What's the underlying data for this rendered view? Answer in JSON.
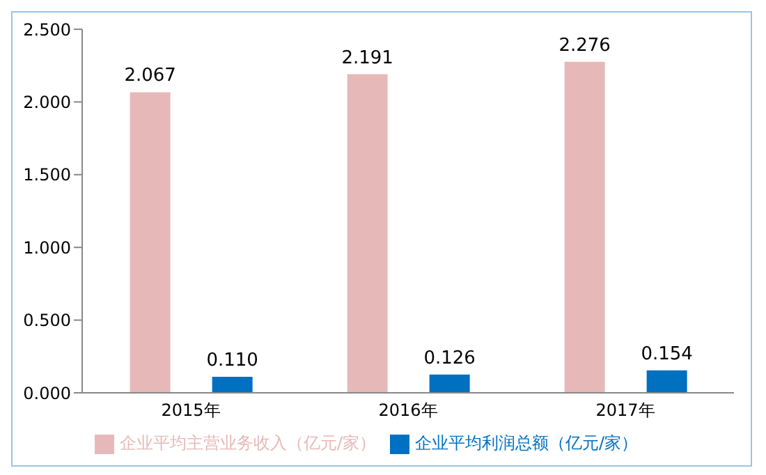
{
  "chart_data": {
    "type": "bar",
    "categories": [
      "2015年",
      "2016年",
      "2017年"
    ],
    "series": [
      {
        "name": "企业平均主营业务收入（亿元/家）",
        "color": "#e6b9b8",
        "values": [
          2.067,
          2.191,
          2.276
        ],
        "value_labels": [
          "2.067",
          "2.191",
          "2.276"
        ]
      },
      {
        "name": "企业平均利润总额（亿元/家）",
        "color": "#0070c0",
        "values": [
          0.11,
          0.126,
          0.154
        ],
        "value_labels": [
          "0.110",
          "0.126",
          "0.154"
        ]
      }
    ],
    "ylim": [
      0,
      2.5
    ],
    "yticks": [
      {
        "value": 0,
        "label": "0.000"
      },
      {
        "value": 0.5,
        "label": "0.500"
      },
      {
        "value": 1,
        "label": "1.000"
      },
      {
        "value": 1.5,
        "label": "1.500"
      },
      {
        "value": 2,
        "label": "2.000"
      },
      {
        "value": 2.5,
        "label": "2.500"
      }
    ],
    "grid": false,
    "legend": "bottom"
  }
}
